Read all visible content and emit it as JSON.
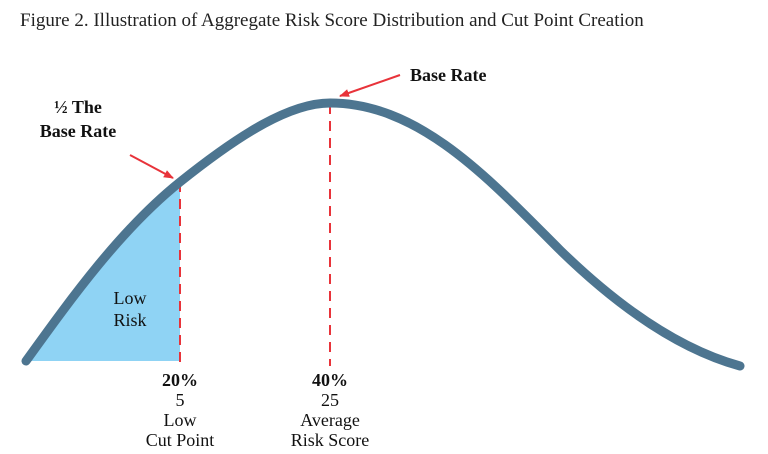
{
  "figure": {
    "title": "Figure 2. Illustration of Aggregate Risk Score Distribution and Cut Point Creation"
  },
  "annotations": {
    "base_rate": "Base Rate",
    "half_base_rate_line1": "½ The",
    "half_base_rate_line2": "Base Rate",
    "low_risk_line1": "Low",
    "low_risk_line2": "Risk"
  },
  "markers": {
    "low": {
      "percent": "20%",
      "score": "5",
      "label_line1": "Low",
      "label_line2": "Cut Point"
    },
    "average": {
      "percent": "40%",
      "score": "25",
      "label_line1": "Average",
      "label_line2": "Risk Score"
    }
  },
  "colors": {
    "curve": "#4d7590",
    "fill": "#8fd3f4",
    "guide": "#e8333a",
    "text": "#111111"
  }
}
